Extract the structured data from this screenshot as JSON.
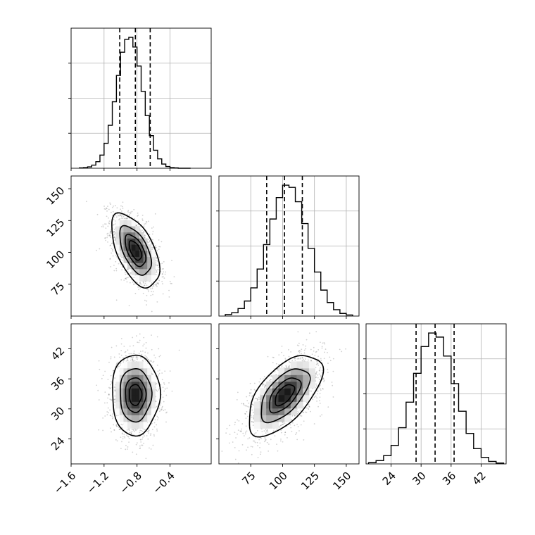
{
  "chart_data": {
    "type": "corner",
    "description_of_layout": "",
    "parameters": [
      {
        "range": [
          -1.6,
          0.1
        ],
        "ticks": [
          -1.6,
          -1.2,
          -0.8,
          -0.4
        ],
        "tick_labels": [
          "−1.6",
          "−1.2",
          "−0.8",
          "−0.4"
        ],
        "quantiles": [
          -1.01,
          -0.82,
          -0.64
        ],
        "mean": -0.82,
        "sd": 0.14
      },
      {
        "range": [
          50,
          160
        ],
        "ticks": [
          75,
          100,
          125,
          150
        ],
        "tick_labels": [
          "75",
          "100",
          "125",
          "150"
        ],
        "quantiles": [
          87.5,
          101.5,
          115.5
        ],
        "mean": 101.5,
        "sd": 14
      },
      {
        "range": [
          19,
          47
        ],
        "ticks": [
          24,
          30,
          36,
          42
        ],
        "tick_labels": [
          "24",
          "30",
          "36",
          "42"
        ],
        "quantiles": [
          29.0,
          32.8,
          36.6
        ],
        "mean": 32.8,
        "sd": 3.9
      }
    ],
    "histograms": [
      {
        "param": 0,
        "bin_edges": [
          -1.5,
          -1.45,
          -1.4,
          -1.35,
          -1.3,
          -1.25,
          -1.2,
          -1.15,
          -1.1,
          -1.05,
          -1.0,
          -0.95,
          -0.9,
          -0.85,
          -0.8,
          -0.75,
          -0.7,
          -0.65,
          -0.6,
          -0.55,
          -0.5,
          -0.45,
          -0.4,
          -0.35,
          -0.3,
          -0.25,
          -0.2,
          -0.15
        ],
        "counts": [
          1,
          2,
          4,
          9,
          19,
          38,
          72,
          124,
          192,
          268,
          335,
          372,
          378,
          350,
          295,
          222,
          152,
          94,
          52,
          27,
          12,
          5,
          2,
          1,
          0,
          0,
          0
        ]
      },
      {
        "param": 1,
        "bin_edges": [
          55,
          60,
          65,
          70,
          75,
          80,
          85,
          90,
          95,
          100,
          105,
          110,
          115,
          120,
          125,
          130,
          135,
          140,
          145,
          150,
          155
        ],
        "counts": [
          4,
          9,
          20,
          40,
          75,
          125,
          190,
          258,
          315,
          348,
          342,
          304,
          246,
          180,
          117,
          69,
          36,
          17,
          7,
          3
        ]
      },
      {
        "param": 2,
        "bin_edges": [
          19.5,
          21,
          22.5,
          24,
          25.5,
          27,
          28.5,
          30,
          31.5,
          33,
          34.5,
          36,
          37.5,
          39,
          40.5,
          42,
          43.5,
          45,
          46.5
        ],
        "counts": [
          3,
          8,
          20,
          45,
          88,
          150,
          220,
          285,
          318,
          308,
          262,
          195,
          128,
          74,
          37,
          16,
          6,
          2
        ]
      }
    ],
    "joint_panels": [
      {
        "x_param": 0,
        "y_param": 1,
        "correlation": -0.55
      },
      {
        "x_param": 0,
        "y_param": 2,
        "correlation": 0.0
      },
      {
        "x_param": 1,
        "y_param": 2,
        "correlation": 0.6
      }
    ],
    "contour_levels_sigma": [
      0.5,
      1.0,
      1.5,
      2.0
    ],
    "grid": true
  }
}
